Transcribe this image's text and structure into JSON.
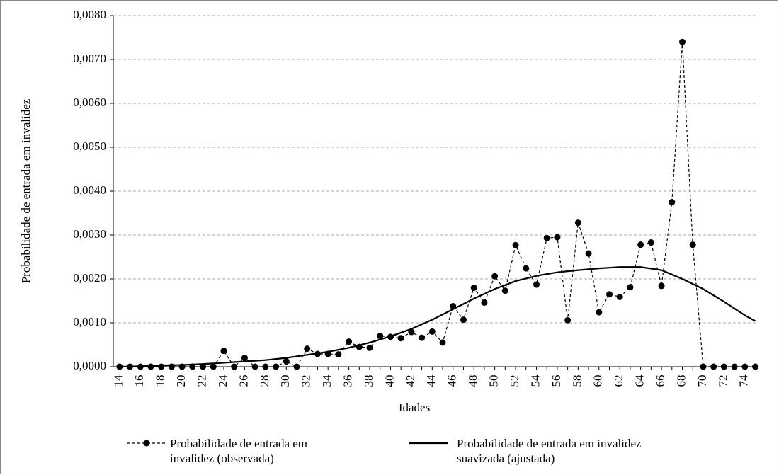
{
  "chart_data": {
    "type": "line",
    "x_label": "Idades",
    "y_label": "Probabilidade de entrada em invalidez",
    "x": [
      14,
      15,
      16,
      17,
      18,
      19,
      20,
      21,
      22,
      23,
      24,
      25,
      26,
      27,
      28,
      29,
      30,
      31,
      32,
      33,
      34,
      35,
      36,
      37,
      38,
      39,
      40,
      41,
      42,
      43,
      44,
      45,
      46,
      47,
      48,
      49,
      50,
      51,
      52,
      53,
      54,
      55,
      56,
      57,
      58,
      59,
      60,
      61,
      62,
      63,
      64,
      65,
      66,
      67,
      68,
      69,
      70,
      71,
      72,
      73,
      74,
      75
    ],
    "series": [
      {
        "name": "Probabilidade de entrada em invalidez (observada)",
        "color": "#000000",
        "dashed": true,
        "markers": true,
        "values": [
          0,
          0,
          0,
          0,
          0,
          0,
          0,
          0,
          0,
          0,
          0.00036,
          0,
          0.0002,
          0,
          0,
          0,
          0.00012,
          0,
          0.00041,
          0.00029,
          0.00029,
          0.00028,
          0.00057,
          0.00045,
          0.00043,
          0.0007,
          0.00068,
          0.00065,
          0.00079,
          0.00066,
          0.0008,
          0.00055,
          0.00138,
          0.00107,
          0.0018,
          0.00146,
          0.00206,
          0.00173,
          0.00277,
          0.00224,
          0.00187,
          0.00293,
          0.00295,
          0.00106,
          0.00328,
          0.00258,
          0.00124,
          0.00165,
          0.00159,
          0.00181,
          0.00278,
          0.00283,
          0.00184,
          0.00375,
          0.0074,
          0.00278,
          0,
          0,
          0,
          0,
          0,
          0
        ]
      },
      {
        "name": "Probabilidade de entrada em invalidez suavizada (ajustada)",
        "color": "#000000",
        "dashed": false,
        "markers": false,
        "values": [
          0,
          5e-06,
          1e-05,
          2e-05,
          3e-05,
          3.5e-05,
          4e-05,
          5e-05,
          6e-05,
          7.5e-05,
          9e-05,
          0.000105,
          0.00012,
          0.000135,
          0.00015,
          0.000175,
          0.0002,
          0.000235,
          0.00027,
          0.000305,
          0.00034,
          0.000385,
          0.00043,
          0.00049,
          0.00055,
          0.00062,
          0.00069,
          0.000775,
          0.00086,
          0.000965,
          0.00107,
          0.00119,
          0.00131,
          0.00143,
          0.00155,
          0.00166,
          0.00177,
          0.00186,
          0.00195,
          0.00201,
          0.00207,
          0.00211,
          0.00215,
          0.002175,
          0.0022,
          0.00222,
          0.00224,
          0.002255,
          0.00227,
          0.00227,
          0.00227,
          0.002235,
          0.0022,
          0.0021,
          0.002,
          0.001885,
          0.00177,
          0.001625,
          0.00148,
          0.001325,
          0.00117,
          0.00104
        ]
      }
    ],
    "xlim": [
      13.4,
      75.1
    ],
    "ylim": [
      0,
      0.008
    ],
    "xticks": [
      14,
      16,
      18,
      20,
      22,
      24,
      26,
      28,
      30,
      32,
      34,
      36,
      38,
      40,
      42,
      44,
      46,
      48,
      50,
      52,
      54,
      56,
      58,
      60,
      62,
      64,
      66,
      68,
      70,
      72,
      74
    ],
    "yticks": [
      {
        "value": 0,
        "label": "0,0000"
      },
      {
        "value": 0.001,
        "label": "0,0010"
      },
      {
        "value": 0.002,
        "label": "0,0020"
      },
      {
        "value": 0.003,
        "label": "0,0030"
      },
      {
        "value": 0.004,
        "label": "0,0040"
      },
      {
        "value": 0.005,
        "label": "0,0050"
      },
      {
        "value": 0.006,
        "label": "0,0060"
      },
      {
        "value": 0.007,
        "label": "0,0070"
      },
      {
        "value": 0.008,
        "label": "0,0080"
      }
    ],
    "grid": true,
    "legend": "bottom"
  }
}
